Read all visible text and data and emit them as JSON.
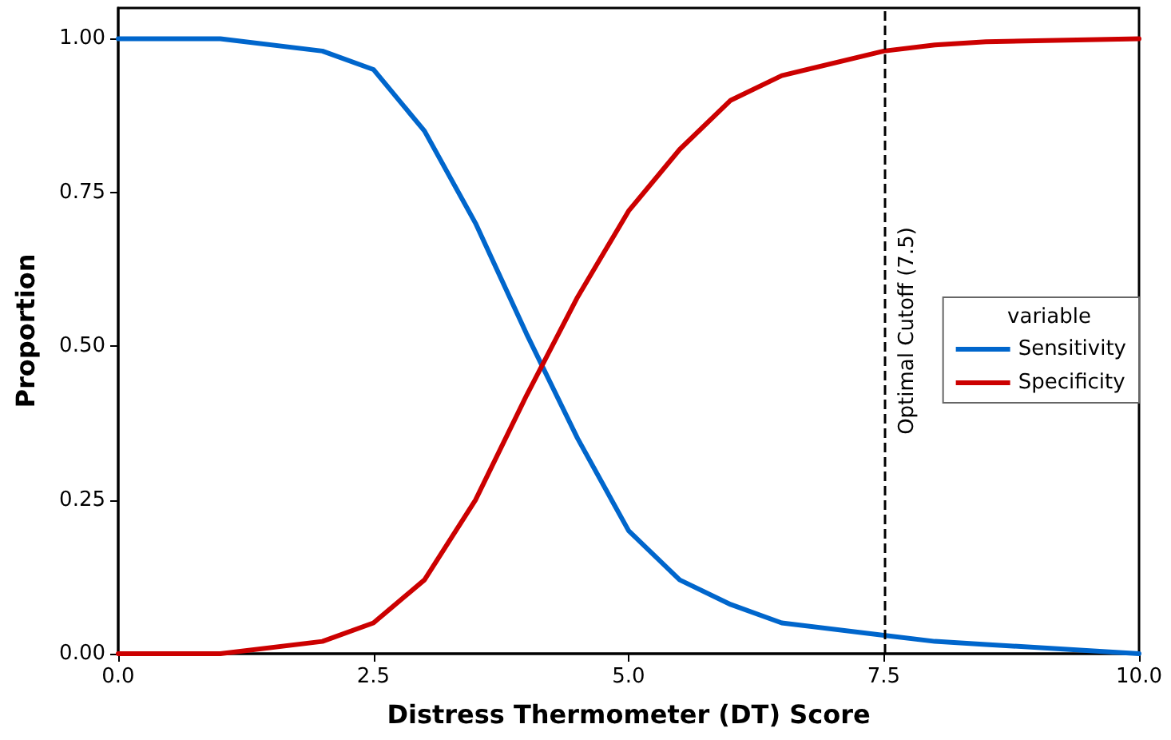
{
  "chart_data": {
    "type": "line",
    "xlabel": "Distress Thermometer (DT) Score",
    "ylabel": "Proportion",
    "legend_title": "variable",
    "xlim": [
      0,
      10
    ],
    "ylim": [
      0,
      1.05
    ],
    "xticks": [
      {
        "value": 0,
        "label": "0.0"
      },
      {
        "value": 2.5,
        "label": "2.5"
      },
      {
        "value": 5,
        "label": "5.0"
      },
      {
        "value": 7.5,
        "label": "7.5"
      },
      {
        "value": 10,
        "label": "10.0"
      }
    ],
    "yticks": [
      {
        "value": 0,
        "label": "0.00"
      },
      {
        "value": 0.25,
        "label": "0.25"
      },
      {
        "value": 0.5,
        "label": "0.50"
      },
      {
        "value": 0.75,
        "label": "0.75"
      },
      {
        "value": 1,
        "label": "1.00"
      }
    ],
    "x": [
      0,
      1,
      2,
      2.5,
      3,
      3.5,
      4,
      4.5,
      5,
      5.5,
      6,
      6.5,
      7.5,
      8,
      8.5,
      10
    ],
    "series": [
      {
        "name": "Sensitivity",
        "color": "#0066cc",
        "values": [
          1.0,
          1.0,
          0.98,
          0.95,
          0.85,
          0.7,
          0.52,
          0.35,
          0.2,
          0.12,
          0.08,
          0.05,
          0.03,
          0.02,
          0.015,
          0.0
        ]
      },
      {
        "name": "Specificity",
        "color": "#cc0000",
        "values": [
          0.0,
          0.0,
          0.02,
          0.05,
          0.12,
          0.25,
          0.42,
          0.58,
          0.72,
          0.82,
          0.9,
          0.94,
          0.98,
          0.99,
          0.995,
          1.0
        ]
      }
    ],
    "ref_lines": [
      {
        "axis": "x",
        "value": 7.5,
        "label": "Optimal Cutoff (7.5)",
        "color": "#000000",
        "line_style": "dashed"
      }
    ],
    "legend": "right",
    "grid": false,
    "marker": "none",
    "line_style": "solid"
  }
}
